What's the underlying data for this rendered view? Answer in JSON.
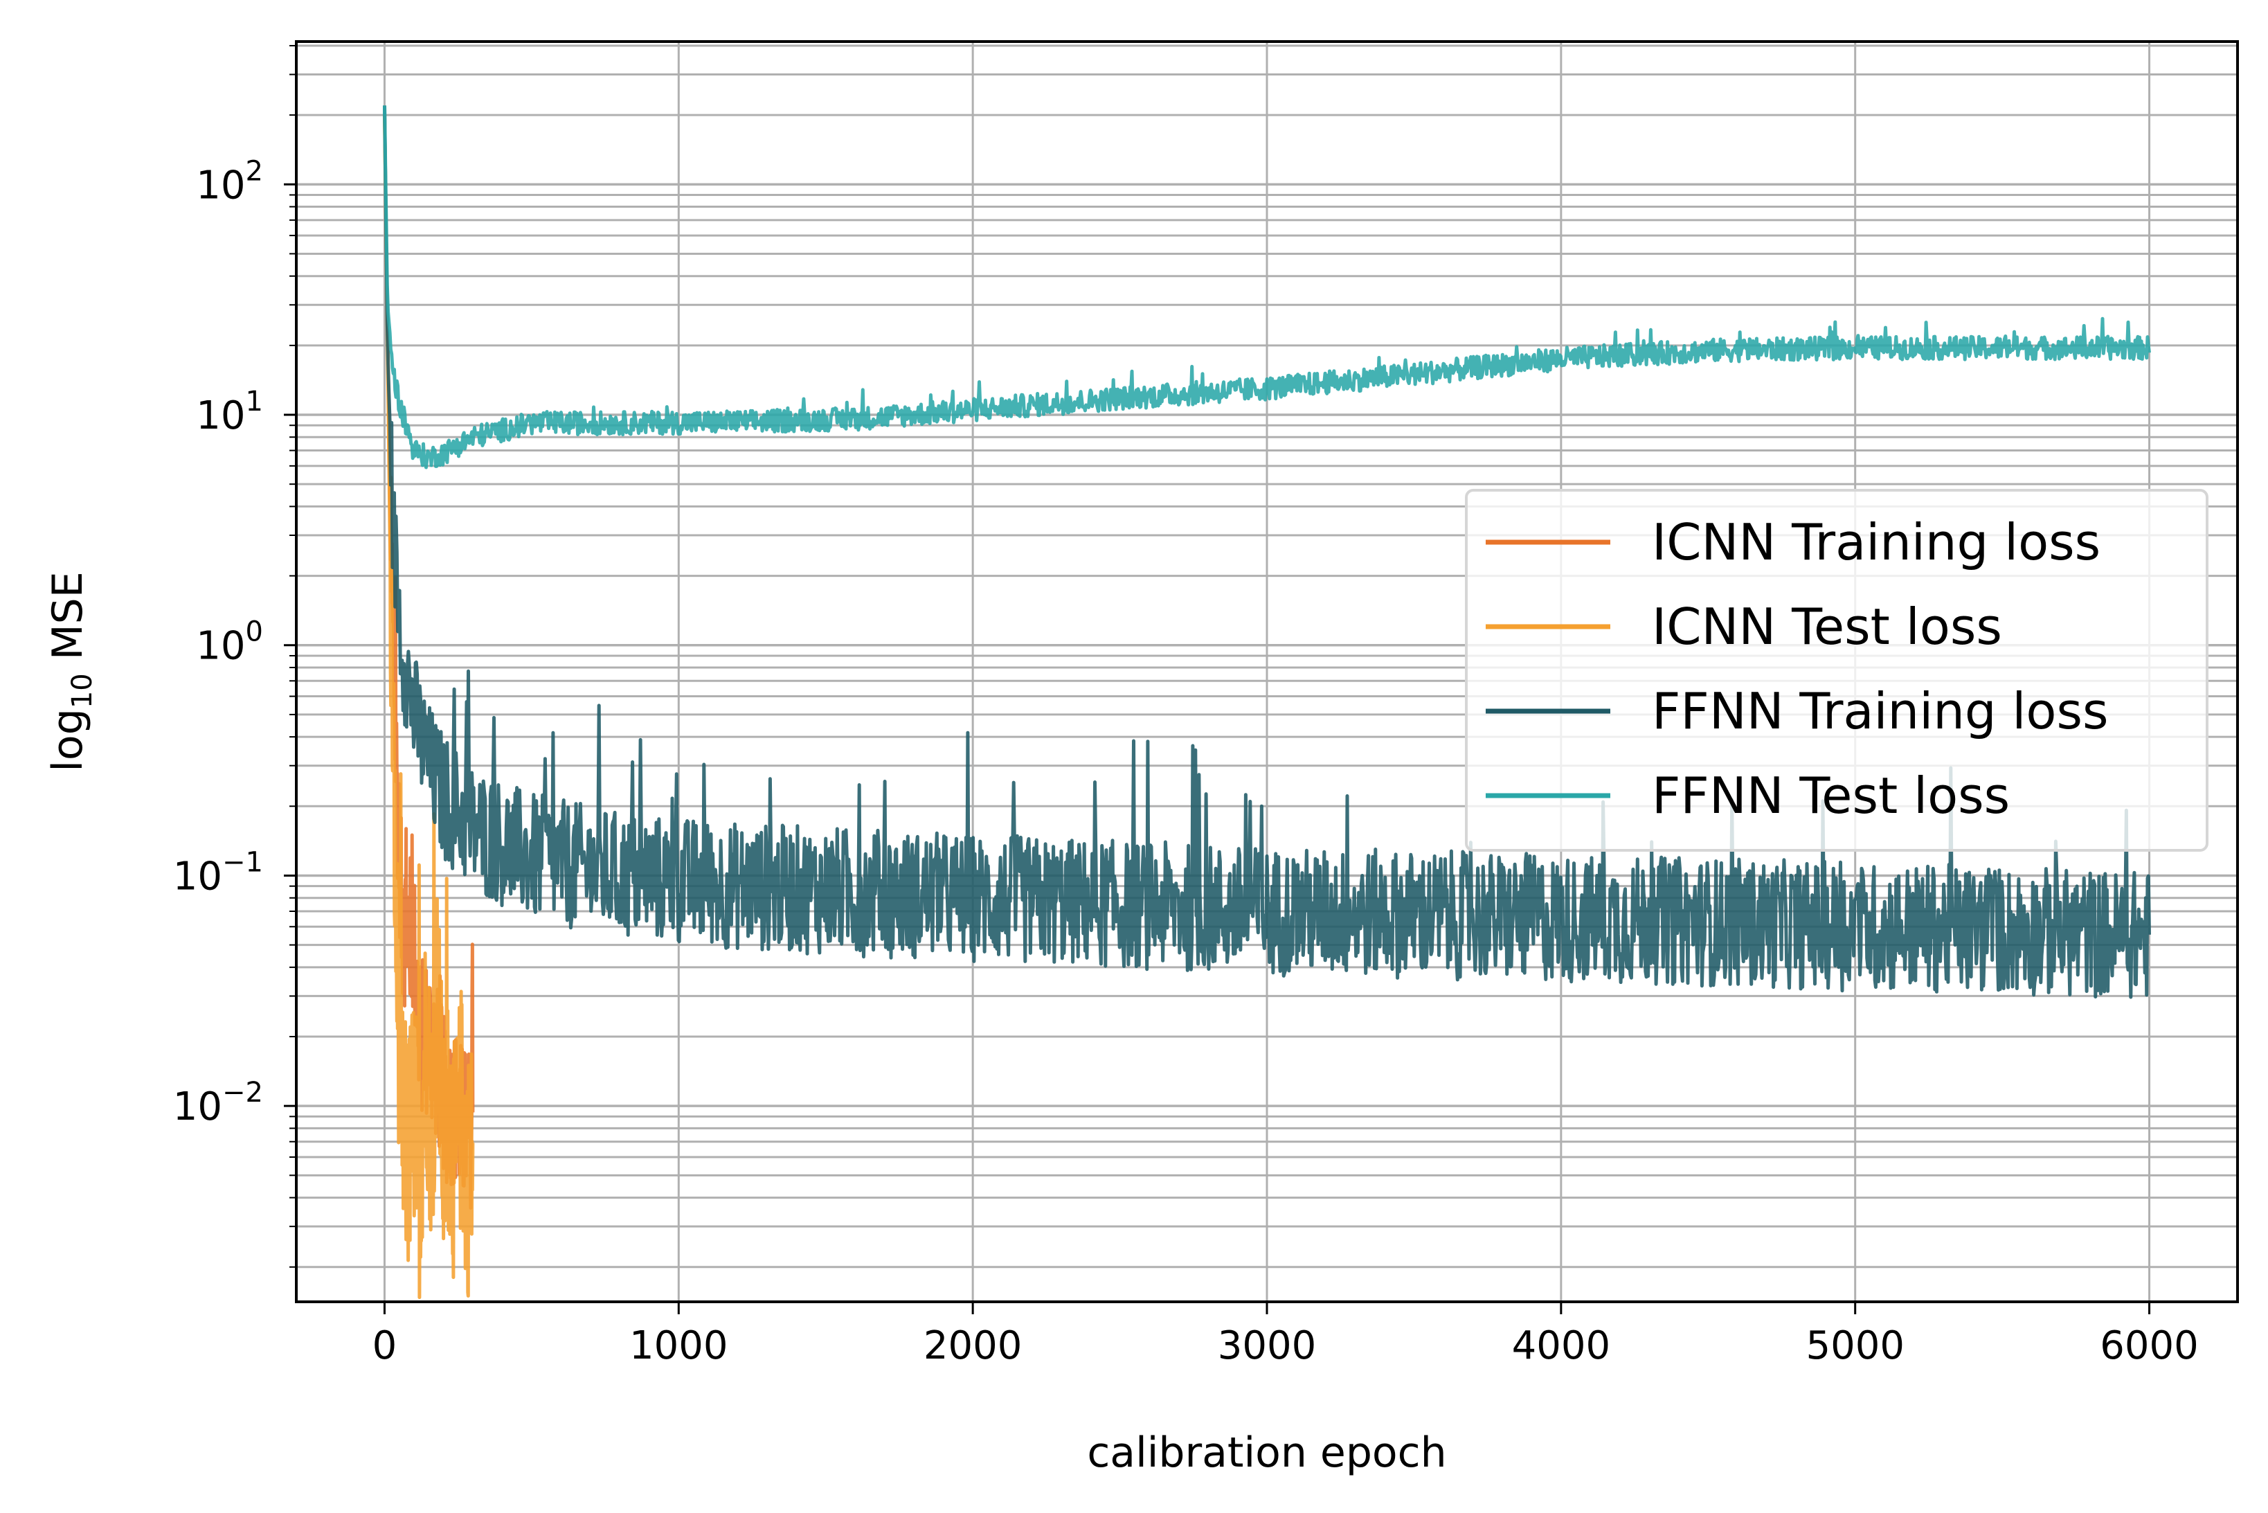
{
  "chart_data": {
    "type": "line",
    "title": "",
    "xlabel": "calibration epoch",
    "ylabel": {
      "prefix": "log",
      "subscript": "10",
      "suffix": " MSE"
    },
    "xlim": [
      -300,
      6300
    ],
    "ylim_log10": [
      -2.85,
      2.62
    ],
    "yscale": "log",
    "grid": true,
    "legend_position": "center-right",
    "x_ticks": [
      0,
      1000,
      2000,
      3000,
      4000,
      5000,
      6000
    ],
    "x_tick_labels": [
      "0",
      "1000",
      "2000",
      "3000",
      "4000",
      "5000",
      "6000"
    ],
    "y_ticks_log10": [
      -2,
      -1,
      0,
      1,
      2
    ],
    "y_tick_labels": [
      {
        "base": "10",
        "exp": "−2"
      },
      {
        "base": "10",
        "exp": "−1"
      },
      {
        "base": "10",
        "exp": "0"
      },
      {
        "base": "10",
        "exp": "1"
      },
      {
        "base": "10",
        "exp": "2"
      }
    ],
    "series": [
      {
        "name": "ICNN Training loss",
        "color": "#e8742a",
        "x": [
          0,
          20,
          40,
          60,
          80,
          100,
          120,
          150,
          180,
          210,
          240,
          270,
          300
        ],
        "y": [
          200,
          3,
          0.3,
          0.06,
          0.06,
          0.05,
          0.02,
          0.02,
          0.015,
          0.01,
          0.01,
          0.008,
          0.008
        ],
        "noise_log10": 0.35
      },
      {
        "name": "ICNN Test loss",
        "color": "#f5a030",
        "x": [
          0,
          20,
          40,
          60,
          80,
          100,
          120,
          140,
          160,
          180,
          200,
          220,
          240,
          260,
          280,
          300
        ],
        "y": [
          200,
          2,
          0.05,
          0.008,
          0.006,
          0.01,
          0.005,
          0.02,
          0.008,
          0.03,
          0.006,
          0.01,
          0.005,
          0.01,
          0.005,
          0.006
        ],
        "noise_log10": 0.55
      },
      {
        "name": "FFNN Training loss",
        "color": "#1f5a66",
        "x": [
          0,
          10,
          30,
          60,
          100,
          150,
          200,
          300,
          500,
          800,
          1200,
          1600,
          2000,
          2500,
          3000,
          3500,
          4000,
          4500,
          5000,
          5500,
          6000
        ],
        "y": [
          220,
          20,
          3,
          1,
          0.5,
          0.3,
          0.22,
          0.16,
          0.12,
          0.1,
          0.09,
          0.085,
          0.08,
          0.075,
          0.07,
          0.068,
          0.065,
          0.063,
          0.06,
          0.058,
          0.055
        ],
        "noise_log10": 0.28
      },
      {
        "name": "FFNN Test loss",
        "color": "#2aa7a8",
        "x": [
          0,
          10,
          30,
          60,
          100,
          150,
          200,
          300,
          500,
          800,
          1200,
          1600,
          2000,
          2500,
          3000,
          3500,
          4000,
          4500,
          5000,
          5500,
          6000
        ],
        "y": [
          220,
          30,
          15,
          10,
          7,
          6.5,
          6.8,
          8,
          9.2,
          9.2,
          9.3,
          9.6,
          10.5,
          11.8,
          13,
          15,
          17.5,
          19,
          19.5,
          19.5,
          19.5
        ],
        "noise_log10": 0.05
      }
    ]
  }
}
